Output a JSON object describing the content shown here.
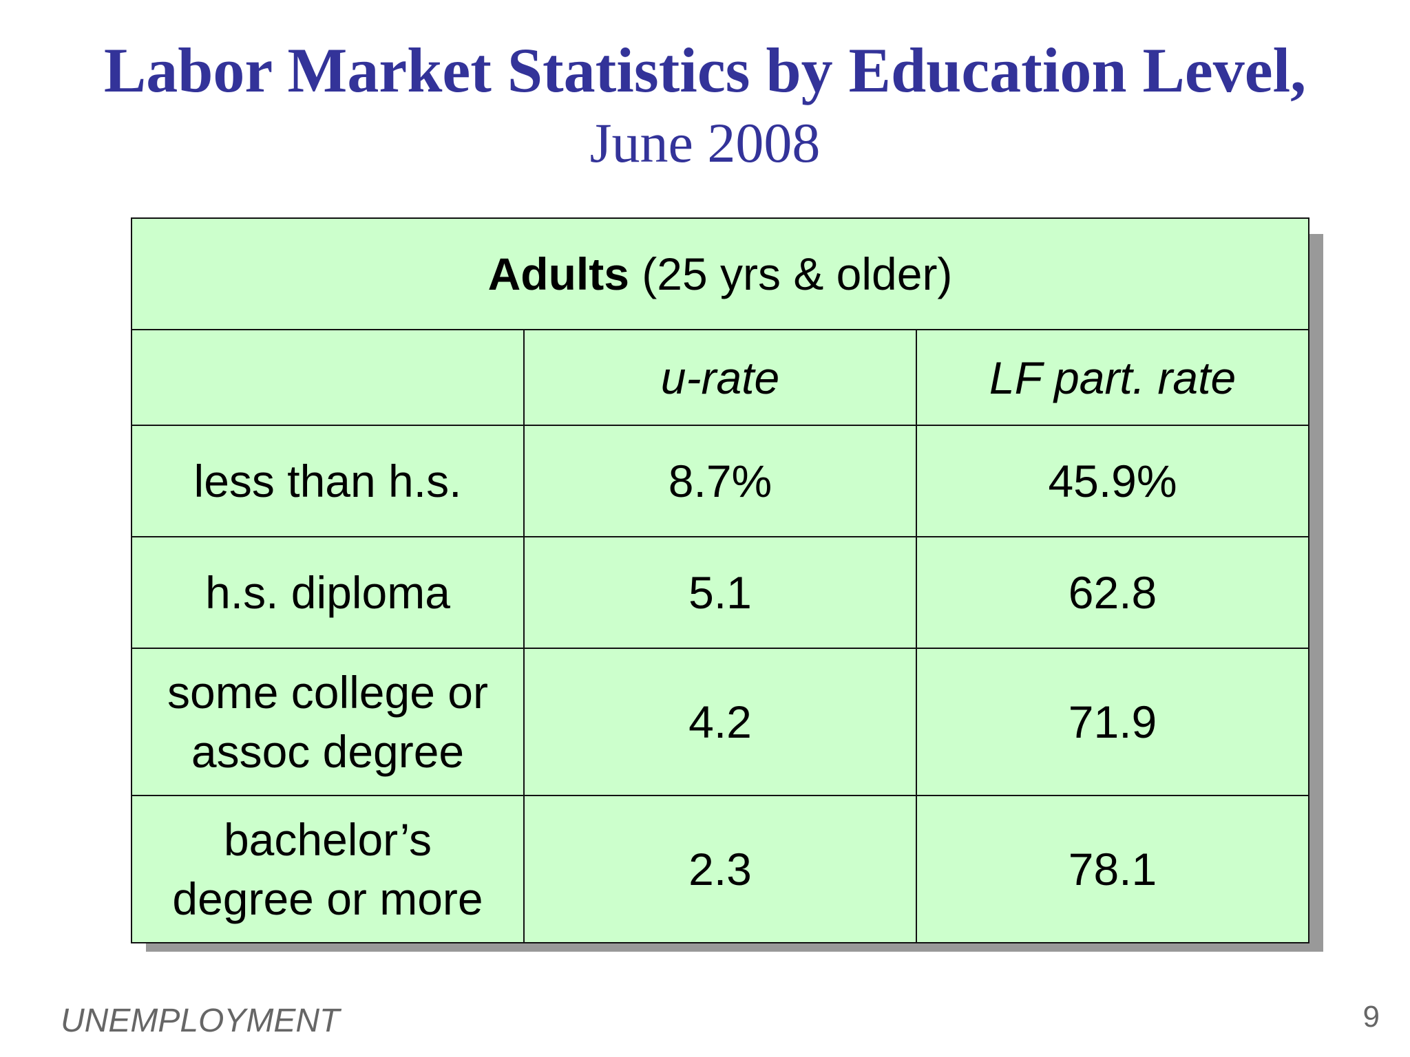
{
  "slide": {
    "title": "Labor Market Statistics by Education Level,",
    "subtitle": "June 2008"
  },
  "table": {
    "group_header_bold": "Adults",
    "group_header_rest": " (25 yrs & older)",
    "columns": [
      "",
      "u-rate",
      "LF part. rate"
    ],
    "rows": [
      {
        "label": "less than h.s.",
        "u_rate": "8.7%",
        "lf_rate": "45.9%"
      },
      {
        "label": "h.s. diploma",
        "u_rate": "5.1",
        "lf_rate": "62.8"
      },
      {
        "label": "some college or assoc degree",
        "u_rate": "4.2",
        "lf_rate": "71.9"
      },
      {
        "label": "bachelor’s degree or more",
        "u_rate": "2.3",
        "lf_rate": "78.1"
      }
    ]
  },
  "footer": {
    "section": "UNEMPLOYMENT",
    "page_number": "9"
  },
  "colors": {
    "title": "#333399",
    "table_fill": "#ccffcc",
    "shadow": "#999999",
    "footer_text": "#666666"
  }
}
